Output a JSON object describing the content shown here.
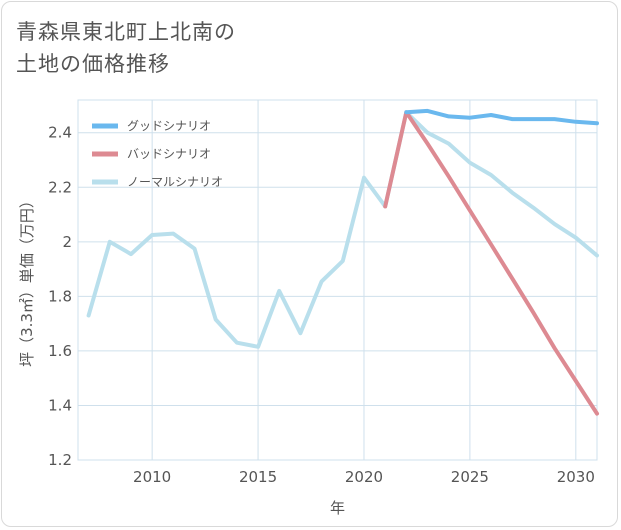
{
  "title": {
    "line1": "青森県東北町上北南の",
    "line2": "土地の価格推移"
  },
  "chart_data": {
    "type": "line",
    "xlabel": "年",
    "ylabel": "坪（3.3㎡）単価（万円）",
    "xlim": [
      2006.5,
      2031
    ],
    "ylim": [
      1.2,
      2.52
    ],
    "xticks": [
      2010,
      2015,
      2020,
      2025,
      2030
    ],
    "yticks": [
      1.2,
      1.4,
      1.6,
      1.8,
      2,
      2.2,
      2.4
    ],
    "ytick_labels": [
      "1.2",
      "1.4",
      "1.6",
      "1.8",
      "2",
      "2.2",
      "2.4"
    ],
    "grid": true,
    "legend_position": "top-left",
    "series": [
      {
        "name": "グッドシナリオ",
        "color": "#6ab8ee",
        "x": [
          2022,
          2023,
          2024,
          2025,
          2026,
          2027,
          2028,
          2029,
          2030,
          2031
        ],
        "y": [
          2.475,
          2.48,
          2.46,
          2.455,
          2.465,
          2.45,
          2.45,
          2.45,
          2.44,
          2.435
        ]
      },
      {
        "name": "バッドシナリオ",
        "color": "#dd8a92",
        "x": [
          2021,
          2022,
          2023,
          2024,
          2025,
          2026,
          2027,
          2028,
          2029,
          2030,
          2031
        ],
        "y": [
          2.13,
          2.475,
          2.36,
          2.24,
          2.115,
          1.99,
          1.865,
          1.74,
          1.61,
          1.49,
          1.37
        ]
      },
      {
        "name": "ノーマルシナリオ",
        "color": "#b9dfec",
        "x": [
          2007,
          2008,
          2009,
          2010,
          2011,
          2012,
          2013,
          2014,
          2015,
          2016,
          2017,
          2018,
          2019,
          2020,
          2021,
          2022,
          2023,
          2024,
          2025,
          2026,
          2027,
          2028,
          2029,
          2030,
          2031
        ],
        "y": [
          1.73,
          2.0,
          1.955,
          2.025,
          2.03,
          1.975,
          1.715,
          1.63,
          1.615,
          1.82,
          1.665,
          1.855,
          1.93,
          2.235,
          2.13,
          2.475,
          2.4,
          2.36,
          2.29,
          2.245,
          2.18,
          2.125,
          2.065,
          2.015,
          1.95
        ]
      }
    ]
  }
}
